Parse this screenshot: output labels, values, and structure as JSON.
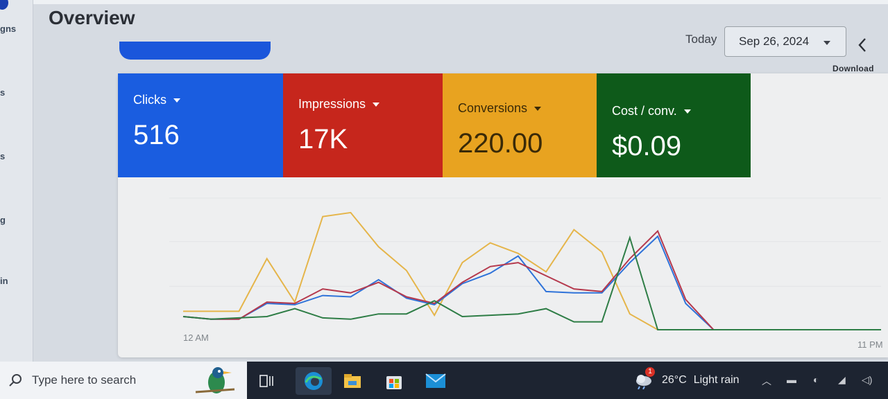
{
  "nav": {
    "partial_labels": [
      "gns",
      "s",
      "s",
      "g",
      "in"
    ]
  },
  "header": {
    "title": "Overview",
    "date_label": "Today",
    "date_value": "Sep 26, 2024",
    "download_label": "Download"
  },
  "metrics": [
    {
      "label": "Clicks",
      "value": "516",
      "color": "#1a5de0"
    },
    {
      "label": "Impressions",
      "value": "17K",
      "color": "#c6261c"
    },
    {
      "label": "Conversions",
      "value": "220.00",
      "color": "#e8a320"
    },
    {
      "label": "Cost / conv.",
      "value": "$0.09",
      "color": "#0e5a1a"
    }
  ],
  "chart_data": {
    "type": "line",
    "x_start_label": "12 AM",
    "x_end_label": "11 PM",
    "x": [
      0,
      1,
      2,
      3,
      4,
      5,
      6,
      7,
      8,
      9,
      10,
      11,
      12,
      13,
      14,
      15,
      16,
      17,
      18,
      19,
      20,
      21,
      22,
      23,
      24,
      25
    ],
    "series": [
      {
        "color": "#e5b54a",
        "values": [
          0.14,
          0.14,
          0.14,
          0.54,
          0.21,
          0.86,
          0.89,
          0.63,
          0.45,
          0.11,
          0.51,
          0.66,
          0.58,
          0.44,
          0.76,
          0.59,
          0.12,
          0,
          0,
          0,
          0,
          0,
          0,
          0,
          0,
          0
        ]
      },
      {
        "color": "#2f73d9",
        "values": [
          0.1,
          0.08,
          0.08,
          0.2,
          0.19,
          0.26,
          0.25,
          0.38,
          0.24,
          0.19,
          0.35,
          0.43,
          0.56,
          0.29,
          0.28,
          0.28,
          0.51,
          0.71,
          0.2,
          0,
          0,
          0,
          0,
          0,
          0,
          0
        ]
      },
      {
        "color": "#b5394d",
        "values": [
          0.1,
          0.08,
          0.08,
          0.21,
          0.2,
          0.31,
          0.28,
          0.36,
          0.25,
          0.2,
          0.36,
          0.48,
          0.51,
          0.41,
          0.31,
          0.29,
          0.54,
          0.75,
          0.23,
          0,
          0,
          0,
          0,
          0,
          0,
          0
        ]
      },
      {
        "color": "#2e7d46",
        "values": [
          0.1,
          0.08,
          0.09,
          0.1,
          0.16,
          0.09,
          0.08,
          0.12,
          0.12,
          0.22,
          0.1,
          0.11,
          0.12,
          0.16,
          0.06,
          0.06,
          0.7,
          0,
          0,
          0,
          0,
          0,
          0,
          0,
          0,
          0
        ]
      }
    ]
  },
  "taskbar": {
    "search_placeholder": "Type here to search",
    "weather_temp": "26°C",
    "weather_desc": "Light rain",
    "weather_badge": "1"
  }
}
